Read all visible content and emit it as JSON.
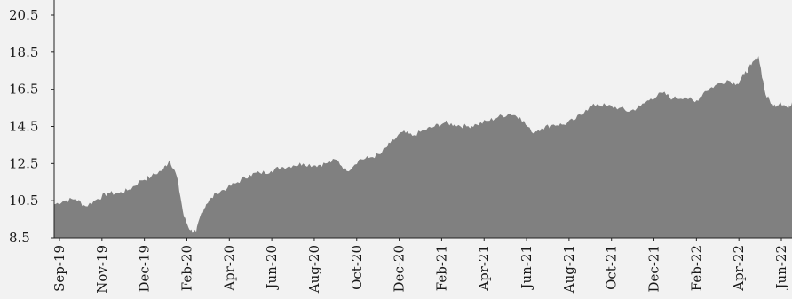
{
  "chart_data": {
    "type": "area",
    "title": "",
    "xlabel": "",
    "ylabel": "",
    "grid": false,
    "legend": "none",
    "ylim": [
      8.5,
      20.5
    ],
    "yticks": [
      "8.5",
      "10.5",
      "12.5",
      "14.5",
      "16.5",
      "18.5",
      "20.5"
    ],
    "xticks": [
      "Sep-19",
      "Nov-19",
      "Dec-19",
      "Feb-20",
      "Apr-20",
      "Jun-20",
      "Aug-20",
      "Oct-20",
      "Dec-20",
      "Feb-21",
      "Apr-21",
      "Jun-21",
      "Aug-21",
      "Oct-21",
      "Dec-21",
      "Feb-22",
      "Apr-22",
      "Jun-22"
    ],
    "colors": {
      "fill": "#808080",
      "background": "#f2f2f2",
      "axis": "#222222"
    },
    "series": [
      {
        "x": [
          "2019-09-01",
          "2019-09-15",
          "2019-10-01",
          "2019-10-15",
          "2019-11-01",
          "2019-11-15",
          "2019-12-01",
          "2019-12-15",
          "2020-01-01",
          "2020-01-15",
          "2020-02-01",
          "2020-02-10",
          "2020-02-20",
          "2020-03-01",
          "2020-03-10",
          "2020-03-18",
          "2020-03-25",
          "2020-04-01",
          "2020-04-15",
          "2020-05-01",
          "2020-05-15",
          "2020-06-01",
          "2020-06-15",
          "2020-07-01",
          "2020-07-15",
          "2020-08-01",
          "2020-08-15",
          "2020-09-01",
          "2020-09-15",
          "2020-10-01",
          "2020-10-15",
          "2020-11-01",
          "2020-11-15",
          "2020-12-01",
          "2020-12-15",
          "2021-01-01",
          "2021-01-15",
          "2021-02-01",
          "2021-02-15",
          "2021-03-01",
          "2021-03-15",
          "2021-04-01",
          "2021-04-15",
          "2021-05-01",
          "2021-05-15",
          "2021-06-01",
          "2021-06-15",
          "2021-07-01",
          "2021-07-15",
          "2021-08-01",
          "2021-08-15",
          "2021-09-01",
          "2021-09-15",
          "2021-10-01",
          "2021-10-15",
          "2021-11-01",
          "2021-11-15",
          "2021-12-01",
          "2021-12-15",
          "2022-01-01",
          "2022-01-15",
          "2022-02-01",
          "2022-02-15",
          "2022-03-01",
          "2022-03-15",
          "2022-04-01",
          "2022-04-15",
          "2022-04-25",
          "2022-05-05",
          "2022-05-15",
          "2022-05-25",
          "2022-06-05",
          "2022-06-15",
          "2022-06-25",
          "2022-07-01"
        ],
        "values": [
          10.3,
          10.5,
          10.6,
          10.2,
          10.6,
          10.9,
          10.9,
          11.1,
          11.6,
          11.8,
          12.2,
          12.7,
          11.8,
          9.6,
          8.9,
          8.8,
          9.8,
          10.3,
          10.9,
          11.2,
          11.5,
          11.9,
          12.0,
          12.1,
          12.3,
          12.4,
          12.5,
          12.4,
          12.5,
          12.7,
          12.1,
          12.7,
          12.8,
          13.0,
          13.6,
          14.2,
          14.0,
          14.3,
          14.5,
          14.7,
          14.6,
          14.5,
          14.6,
          14.8,
          15.0,
          15.2,
          15.0,
          14.2,
          14.4,
          14.6,
          14.6,
          14.9,
          15.4,
          15.7,
          15.6,
          15.5,
          15.3,
          15.6,
          16.0,
          16.3,
          16.0,
          16.1,
          15.8,
          16.4,
          16.7,
          17.0,
          16.8,
          17.3,
          17.8,
          18.3,
          16.2,
          15.6,
          15.8,
          15.5,
          15.8
        ]
      }
    ]
  }
}
